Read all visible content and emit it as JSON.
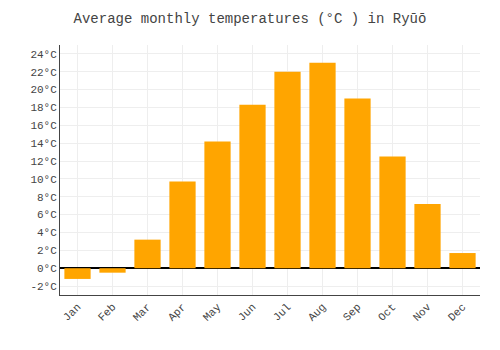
{
  "chart_data": {
    "type": "bar",
    "title": "Average monthly temperatures (°C ) in Ryūō",
    "categories": [
      "Jan",
      "Feb",
      "Mar",
      "Apr",
      "May",
      "Jun",
      "Jul",
      "Aug",
      "Sep",
      "Oct",
      "Nov",
      "Dec"
    ],
    "values": [
      -1.2,
      -0.5,
      3.2,
      9.7,
      14.2,
      18.3,
      22.0,
      23.0,
      19.0,
      12.5,
      7.2,
      1.7
    ],
    "color": "#FFA500",
    "ylim": [
      -3,
      25
    ],
    "yticks": [
      {
        "value": -2,
        "label": "-2°C"
      },
      {
        "value": 0,
        "label": "0°C"
      },
      {
        "value": 2,
        "label": "2°C"
      },
      {
        "value": 4,
        "label": "4°C"
      },
      {
        "value": 6,
        "label": "6°C"
      },
      {
        "value": 8,
        "label": "8°C"
      },
      {
        "value": 10,
        "label": "10°C"
      },
      {
        "value": 12,
        "label": "12°C"
      },
      {
        "value": 14,
        "label": "14°C"
      },
      {
        "value": 16,
        "label": "16°C"
      },
      {
        "value": 18,
        "label": "18°C"
      },
      {
        "value": 20,
        "label": "20°C"
      },
      {
        "value": 22,
        "label": "22°C"
      },
      {
        "value": 24,
        "label": "24°C"
      }
    ],
    "grid": true
  }
}
